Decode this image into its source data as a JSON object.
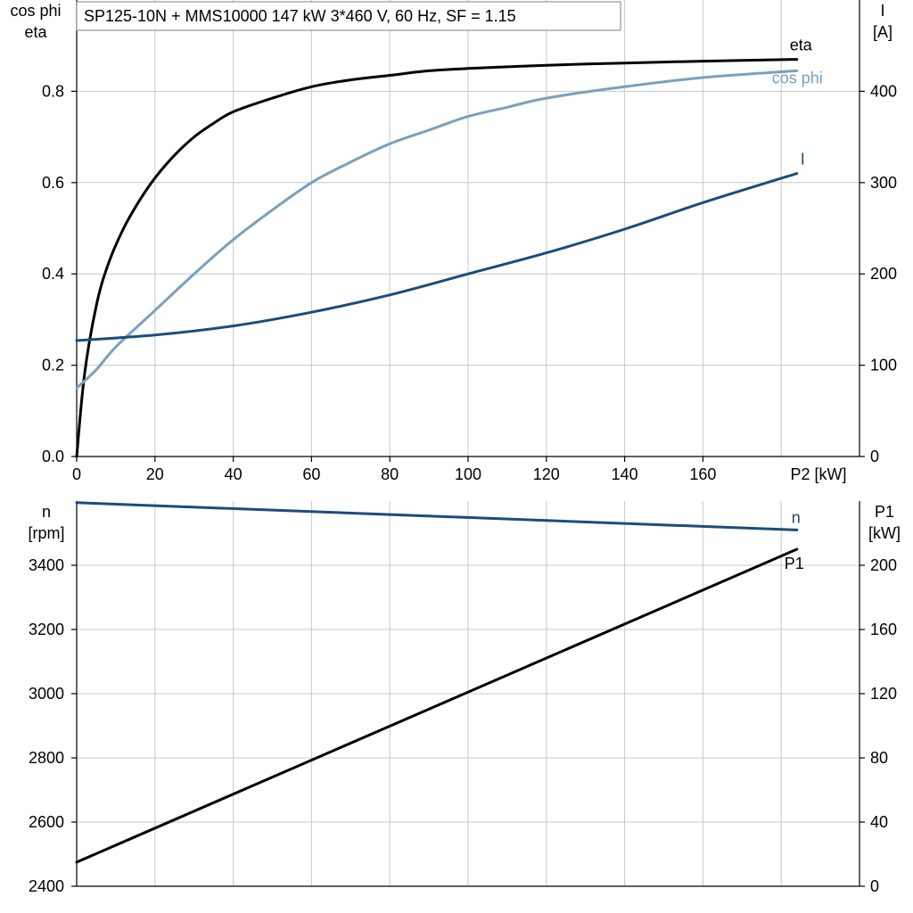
{
  "title": "SP125-10N + MMS10000   147 kW   3*460 V, 60 Hz, SF = 1.15",
  "chart_data": [
    {
      "type": "line",
      "xlabel": "P2 [kW]",
      "xlim": [
        0,
        200
      ],
      "xticks": [
        0,
        20,
        40,
        60,
        80,
        100,
        120,
        140,
        160
      ],
      "xgrid": [
        0,
        20,
        40,
        60,
        80,
        100,
        120,
        140,
        160,
        180,
        200
      ],
      "left_axis": {
        "label_lines": [
          "cos phi",
          "eta"
        ],
        "lim": [
          0,
          1.0
        ],
        "ticks": [
          0.0,
          0.2,
          0.4,
          0.6,
          0.8
        ],
        "tick_labels": [
          "0.0",
          "0.2",
          "0.4",
          "0.6",
          "0.8"
        ]
      },
      "right_axis": {
        "label_lines": [
          "I",
          "[A]"
        ],
        "lim": [
          0,
          500
        ],
        "ticks": [
          0,
          100,
          200,
          300,
          400
        ],
        "tick_labels": [
          "0",
          "100",
          "200",
          "300",
          "400"
        ]
      },
      "grid": true,
      "series": [
        {
          "name": "eta",
          "axis": "left",
          "color": "#000000",
          "x": [
            0,
            2,
            5,
            8,
            12,
            16,
            20,
            25,
            30,
            35,
            40,
            50,
            60,
            70,
            80,
            90,
            100,
            120,
            140,
            160,
            184
          ],
          "y": [
            0.0,
            0.18,
            0.33,
            0.42,
            0.5,
            0.56,
            0.61,
            0.66,
            0.7,
            0.73,
            0.755,
            0.785,
            0.81,
            0.825,
            0.835,
            0.845,
            0.85,
            0.857,
            0.862,
            0.866,
            0.87
          ]
        },
        {
          "name": "cos phi",
          "axis": "left",
          "color": "#7b9fbe",
          "x": [
            0,
            5,
            10,
            20,
            30,
            40,
            50,
            60,
            70,
            80,
            90,
            100,
            110,
            120,
            140,
            160,
            184
          ],
          "y": [
            0.15,
            0.19,
            0.24,
            0.32,
            0.4,
            0.475,
            0.54,
            0.6,
            0.645,
            0.685,
            0.715,
            0.745,
            0.765,
            0.785,
            0.81,
            0.83,
            0.845
          ]
        },
        {
          "name": "I",
          "axis": "right",
          "color": "#1a4d7c",
          "x": [
            0,
            20,
            40,
            60,
            80,
            100,
            120,
            140,
            160,
            184
          ],
          "y": [
            127,
            133,
            143,
            158,
            177,
            200,
            223,
            249,
            278,
            310
          ]
        }
      ]
    },
    {
      "type": "line",
      "xlim": [
        0,
        200
      ],
      "xgrid": [
        0,
        20,
        40,
        60,
        80,
        100,
        120,
        140,
        160,
        180,
        200
      ],
      "left_axis": {
        "label_lines": [
          "n",
          "[rpm]"
        ],
        "lim": [
          2400,
          3600
        ],
        "ticks": [
          2400,
          2600,
          2800,
          3000,
          3200,
          3400
        ],
        "tick_labels": [
          "2400",
          "2600",
          "2800",
          "3000",
          "3200",
          "3400"
        ]
      },
      "right_axis": {
        "label_lines": [
          "P1",
          "[kW]"
        ],
        "lim": [
          0,
          240
        ],
        "ticks": [
          0,
          40,
          80,
          120,
          160,
          200
        ],
        "tick_labels": [
          "0",
          "40",
          "80",
          "120",
          "160",
          "200"
        ]
      },
      "grid": true,
      "series": [
        {
          "name": "n",
          "axis": "left",
          "color": "#1a4d7c",
          "x": [
            0,
            184
          ],
          "y": [
            3595,
            3510
          ]
        },
        {
          "name": "P1",
          "axis": "right",
          "color": "#000000",
          "x": [
            0,
            184
          ],
          "y": [
            15,
            210
          ]
        }
      ]
    }
  ]
}
